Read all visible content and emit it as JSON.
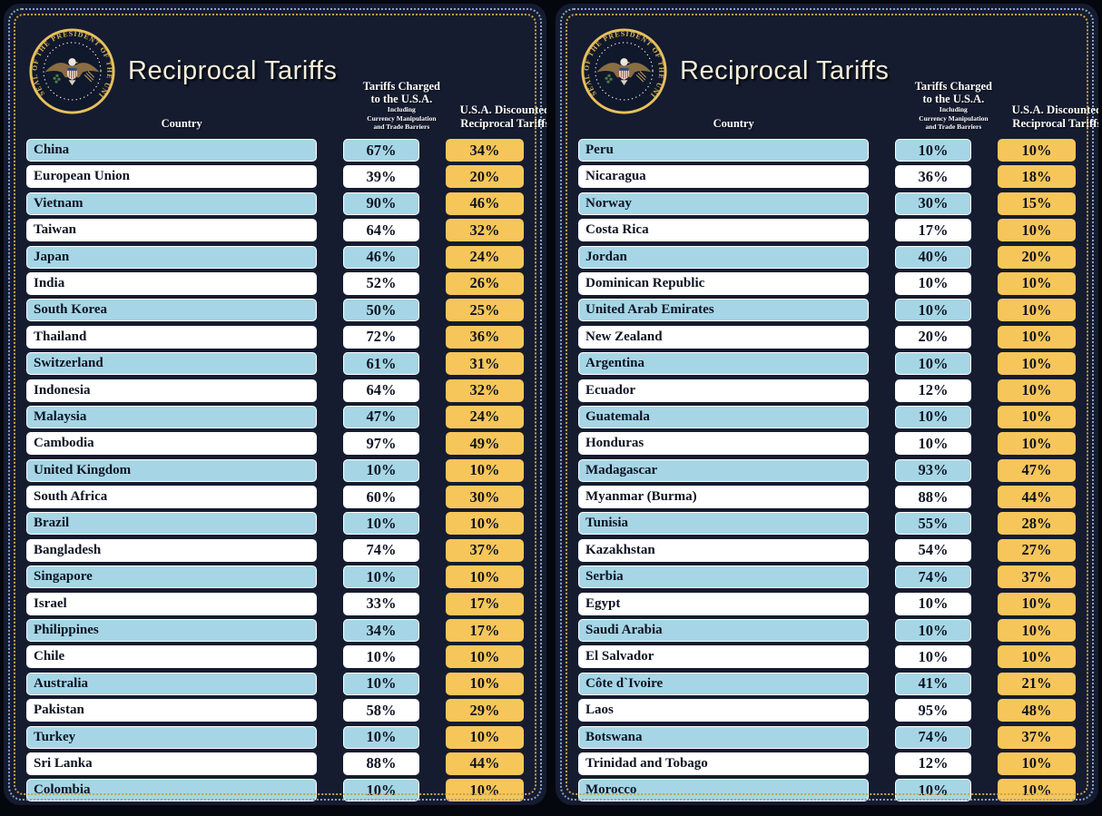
{
  "title": "Reciprocal Tariffs",
  "columns": {
    "country": "Country",
    "charged_line1": "Tariffs Charged",
    "charged_line2": "to the U.S.A.",
    "charged_sub1": "Including",
    "charged_sub2": "Currency Manipulation",
    "charged_sub3": "and Trade Barriers",
    "discounted_line1": "U.S.A. Discounted",
    "discounted_line2": "Reciprocal Tariffs"
  },
  "seal_text": "SEAL OF THE PRESIDENT OF THE UNITED STATES",
  "colors": {
    "page_bg": "#04070d",
    "panel_bg": "#151c30",
    "row_blue": "#a6d6e6",
    "row_white": "#ffffff",
    "tariff_gold": "#f6c65a",
    "dotted_border_gold": "#c7a248",
    "dotted_border_blue": "#8ba1c4",
    "title_cream": "#f3eddb",
    "pill_text_dark": "#0c1322"
  },
  "chart_data": {
    "type": "table",
    "title": "Reciprocal Tariffs",
    "columns": [
      "Country",
      "Tariffs Charged to the U.S.A. Including Currency Manipulation and Trade Barriers",
      "U.S.A. Discounted Reciprocal Tariffs"
    ],
    "units": "percent",
    "panel_split": 25,
    "rows": [
      [
        "China",
        67,
        34
      ],
      [
        "European Union",
        39,
        20
      ],
      [
        "Vietnam",
        90,
        46
      ],
      [
        "Taiwan",
        64,
        32
      ],
      [
        "Japan",
        46,
        24
      ],
      [
        "India",
        52,
        26
      ],
      [
        "South Korea",
        50,
        25
      ],
      [
        "Thailand",
        72,
        36
      ],
      [
        "Switzerland",
        61,
        31
      ],
      [
        "Indonesia",
        64,
        32
      ],
      [
        "Malaysia",
        47,
        24
      ],
      [
        "Cambodia",
        97,
        49
      ],
      [
        "United Kingdom",
        10,
        10
      ],
      [
        "South Africa",
        60,
        30
      ],
      [
        "Brazil",
        10,
        10
      ],
      [
        "Bangladesh",
        74,
        37
      ],
      [
        "Singapore",
        10,
        10
      ],
      [
        "Israel",
        33,
        17
      ],
      [
        "Philippines",
        34,
        17
      ],
      [
        "Chile",
        10,
        10
      ],
      [
        "Australia",
        10,
        10
      ],
      [
        "Pakistan",
        58,
        29
      ],
      [
        "Turkey",
        10,
        10
      ],
      [
        "Sri Lanka",
        88,
        44
      ],
      [
        "Colombia",
        10,
        10
      ],
      [
        "Peru",
        10,
        10
      ],
      [
        "Nicaragua",
        36,
        18
      ],
      [
        "Norway",
        30,
        15
      ],
      [
        "Costa Rica",
        17,
        10
      ],
      [
        "Jordan",
        40,
        20
      ],
      [
        "Dominican Republic",
        10,
        10
      ],
      [
        "United Arab Emirates",
        10,
        10
      ],
      [
        "New Zealand",
        20,
        10
      ],
      [
        "Argentina",
        10,
        10
      ],
      [
        "Ecuador",
        12,
        10
      ],
      [
        "Guatemala",
        10,
        10
      ],
      [
        "Honduras",
        10,
        10
      ],
      [
        "Madagascar",
        93,
        47
      ],
      [
        "Myanmar (Burma)",
        88,
        44
      ],
      [
        "Tunisia",
        55,
        28
      ],
      [
        "Kazakhstan",
        54,
        27
      ],
      [
        "Serbia",
        74,
        37
      ],
      [
        "Egypt",
        10,
        10
      ],
      [
        "Saudi Arabia",
        10,
        10
      ],
      [
        "El Salvador",
        10,
        10
      ],
      [
        "Côte d`Ivoire",
        41,
        21
      ],
      [
        "Laos",
        95,
        48
      ],
      [
        "Botswana",
        74,
        37
      ],
      [
        "Trinidad and Tobago",
        12,
        10
      ],
      [
        "Morocco",
        10,
        10
      ]
    ]
  }
}
